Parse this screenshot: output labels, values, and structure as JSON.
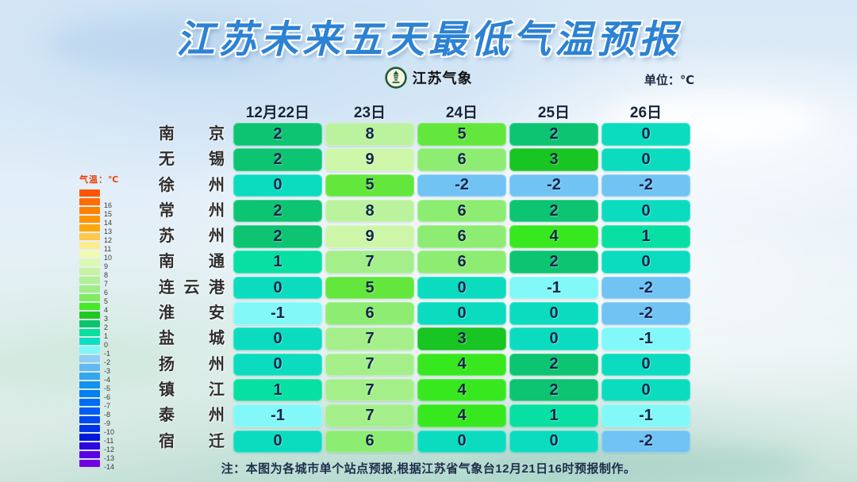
{
  "title": "江苏未来五天最低气温预报",
  "brand": {
    "name": "江苏气象"
  },
  "unit_label": "单位：℃",
  "note": "注：本图为各城市单个站点预报,根据江苏省气象台12月21日16时预报制作。",
  "legend": {
    "title": "气温：℃",
    "entries": [
      {
        "label": "",
        "color": "#ff5400"
      },
      {
        "label": "16",
        "color": "#ff6c00"
      },
      {
        "label": "15",
        "color": "#ff8100"
      },
      {
        "label": "14",
        "color": "#ff9400"
      },
      {
        "label": "13",
        "color": "#ffa70a"
      },
      {
        "label": "12",
        "color": "#ffc84a"
      },
      {
        "label": "11",
        "color": "#fdeb90"
      },
      {
        "label": "10",
        "color": "#f2fab2"
      },
      {
        "label": "9",
        "color": "#dcf7ae"
      },
      {
        "label": "8",
        "color": "#c6f3a2"
      },
      {
        "label": "7",
        "color": "#b1f094"
      },
      {
        "label": "6",
        "color": "#9eee85"
      },
      {
        "label": "5",
        "color": "#7eeb61"
      },
      {
        "label": "4",
        "color": "#46e926"
      },
      {
        "label": "3",
        "color": "#1fc91f"
      },
      {
        "label": "2",
        "color": "#0cc46e"
      },
      {
        "label": "1",
        "color": "#06e0a0"
      },
      {
        "label": "0",
        "color": "#0adfc6"
      },
      {
        "label": "-1",
        "color": "#80f6f8"
      },
      {
        "label": "-2",
        "color": "#8ecdf5"
      },
      {
        "label": "-3",
        "color": "#62b8f2"
      },
      {
        "label": "-4",
        "color": "#36a5f0"
      },
      {
        "label": "-5",
        "color": "#1292f0"
      },
      {
        "label": "-6",
        "color": "#0080f2"
      },
      {
        "label": "-7",
        "color": "#006df4"
      },
      {
        "label": "-8",
        "color": "#005cf2"
      },
      {
        "label": "-9",
        "color": "#0049ee"
      },
      {
        "label": "-10",
        "color": "#0032e8"
      },
      {
        "label": "-11",
        "color": "#0019dd"
      },
      {
        "label": "-12",
        "color": "#2e07dd"
      },
      {
        "label": "-13",
        "color": "#5a03e2"
      },
      {
        "label": "-14",
        "color": "#7304e2"
      }
    ]
  },
  "temp_colors": {
    "9": "#cdf6a9",
    "8": "#bbf29e",
    "7": "#a4ef8a",
    "6": "#8dec72",
    "5": "#63e73c",
    "4": "#38e81e",
    "3": "#18c522",
    "2": "#0dc472",
    "1": "#07e0a2",
    "0": "#0bdcc0",
    "-1": "#82f8f8",
    "-2": "#70c3f3"
  },
  "table": {
    "date_headers": [
      "12月22日",
      "23日",
      "24日",
      "25日",
      "26日"
    ],
    "rows": [
      {
        "city": "南京",
        "temps": [
          2,
          8,
          5,
          2,
          0
        ]
      },
      {
        "city": "无锡",
        "temps": [
          2,
          9,
          6,
          3,
          0
        ]
      },
      {
        "city": "徐州",
        "temps": [
          0,
          5,
          -2,
          -2,
          -2
        ]
      },
      {
        "city": "常州",
        "temps": [
          2,
          8,
          6,
          2,
          0
        ]
      },
      {
        "city": "苏州",
        "temps": [
          2,
          9,
          6,
          4,
          1
        ]
      },
      {
        "city": "南通",
        "temps": [
          1,
          7,
          6,
          2,
          0
        ]
      },
      {
        "city": "连云港",
        "temps": [
          0,
          5,
          0,
          -1,
          -2
        ]
      },
      {
        "city": "淮安",
        "temps": [
          -1,
          6,
          0,
          0,
          -2
        ]
      },
      {
        "city": "盐城",
        "temps": [
          0,
          7,
          3,
          0,
          -1
        ]
      },
      {
        "city": "扬州",
        "temps": [
          0,
          7,
          4,
          2,
          0
        ]
      },
      {
        "city": "镇江",
        "temps": [
          1,
          7,
          4,
          2,
          0
        ]
      },
      {
        "city": "泰州",
        "temps": [
          -1,
          7,
          4,
          1,
          -1
        ]
      },
      {
        "city": "宿迁",
        "temps": [
          0,
          6,
          0,
          0,
          -2
        ]
      }
    ]
  },
  "chart_data": {
    "type": "heatmap",
    "title": "江苏未来五天最低气温预报",
    "unit": "℃",
    "x": [
      "12月22日",
      "23日",
      "24日",
      "25日",
      "26日"
    ],
    "series": [
      {
        "name": "南京",
        "values": [
          2,
          8,
          5,
          2,
          0
        ]
      },
      {
        "name": "无锡",
        "values": [
          2,
          9,
          6,
          3,
          0
        ]
      },
      {
        "name": "徐州",
        "values": [
          0,
          5,
          -2,
          -2,
          -2
        ]
      },
      {
        "name": "常州",
        "values": [
          2,
          8,
          6,
          2,
          0
        ]
      },
      {
        "name": "苏州",
        "values": [
          2,
          9,
          6,
          4,
          1
        ]
      },
      {
        "name": "南通",
        "values": [
          1,
          7,
          6,
          2,
          0
        ]
      },
      {
        "name": "连云港",
        "values": [
          0,
          5,
          0,
          -1,
          -2
        ]
      },
      {
        "name": "淮安",
        "values": [
          -1,
          6,
          0,
          0,
          -2
        ]
      },
      {
        "name": "盐城",
        "values": [
          0,
          7,
          3,
          0,
          -1
        ]
      },
      {
        "name": "扬州",
        "values": [
          0,
          7,
          4,
          2,
          0
        ]
      },
      {
        "name": "镇江",
        "values": [
          1,
          7,
          4,
          2,
          0
        ]
      },
      {
        "name": "泰州",
        "values": [
          -1,
          7,
          4,
          1,
          -1
        ]
      },
      {
        "name": "宿迁",
        "values": [
          0,
          6,
          0,
          0,
          -2
        ]
      }
    ],
    "colorscale_range": [
      -14,
      16
    ],
    "legend_position": "left"
  }
}
